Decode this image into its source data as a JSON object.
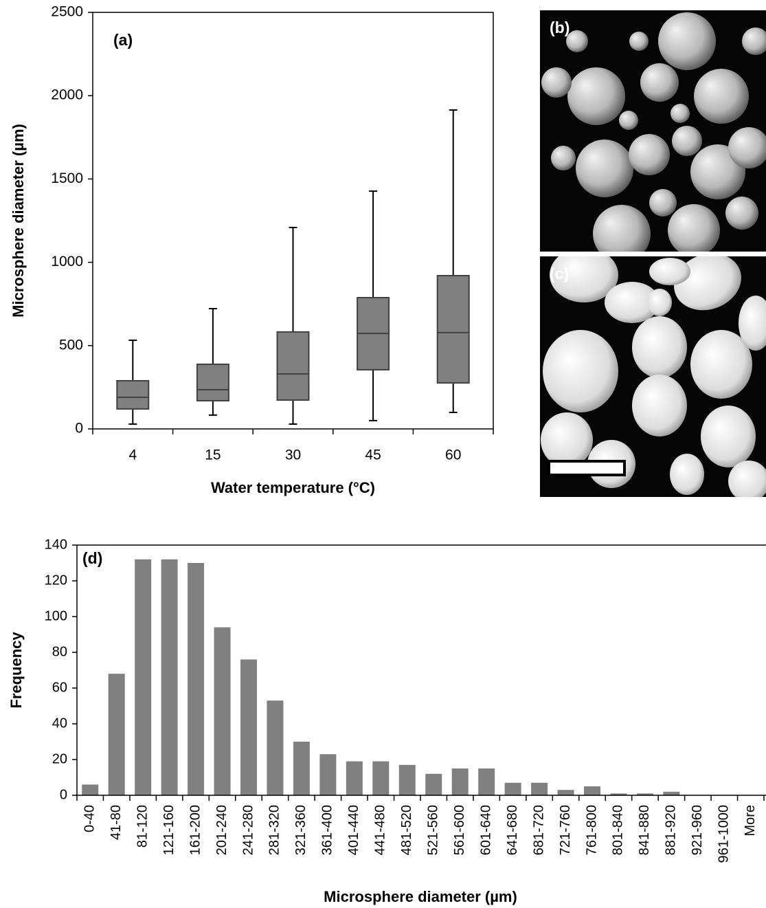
{
  "chart_data": [
    {
      "type": "box",
      "panel_label": "(a)",
      "xlabel": "Water temperature (°C)",
      "ylabel": "Microsphere diameter (µm)",
      "categories": [
        "4",
        "15",
        "30",
        "45",
        "60"
      ],
      "min": [
        29,
        83,
        29,
        50,
        99
      ],
      "q1": [
        120,
        169,
        173,
        355,
        276
      ],
      "median": [
        190,
        235,
        330,
        573,
        578
      ],
      "q3": [
        289,
        388,
        582,
        788,
        920
      ],
      "max": [
        532,
        722,
        1209,
        1427,
        1914
      ],
      "color": "#808080",
      "ylim": [
        0,
        2500
      ],
      "yticks": [
        0,
        500,
        1000,
        1500,
        2000,
        2500
      ]
    },
    {
      "type": "bar",
      "panel_label": "(d)",
      "xlabel": "Microsphere diameter (µm)",
      "ylabel": "Frequency",
      "categories": [
        "0-40",
        "41-80",
        "81-120",
        "121-160",
        "161-200",
        "201-240",
        "241-280",
        "281-320",
        "321-360",
        "361-400",
        "401-440",
        "441-480",
        "481-520",
        "521-560",
        "561-600",
        "601-640",
        "641-680",
        "681-720",
        "721-760",
        "761-800",
        "801-840",
        "841-880",
        "881-920",
        "921-960",
        "961-1000",
        "More"
      ],
      "values": [
        6,
        68,
        132,
        132,
        130,
        94,
        76,
        53,
        30,
        23,
        19,
        19,
        17,
        12,
        15,
        15,
        7,
        7,
        3,
        5,
        1,
        1,
        2,
        0,
        0,
        0
      ],
      "color": "#808080",
      "ylim": [
        0,
        140
      ],
      "yticks": [
        0,
        20,
        40,
        60,
        80,
        100,
        120,
        140
      ]
    }
  ],
  "panels": [
    {
      "label": "(b)"
    },
    {
      "label": "(c)"
    }
  ]
}
